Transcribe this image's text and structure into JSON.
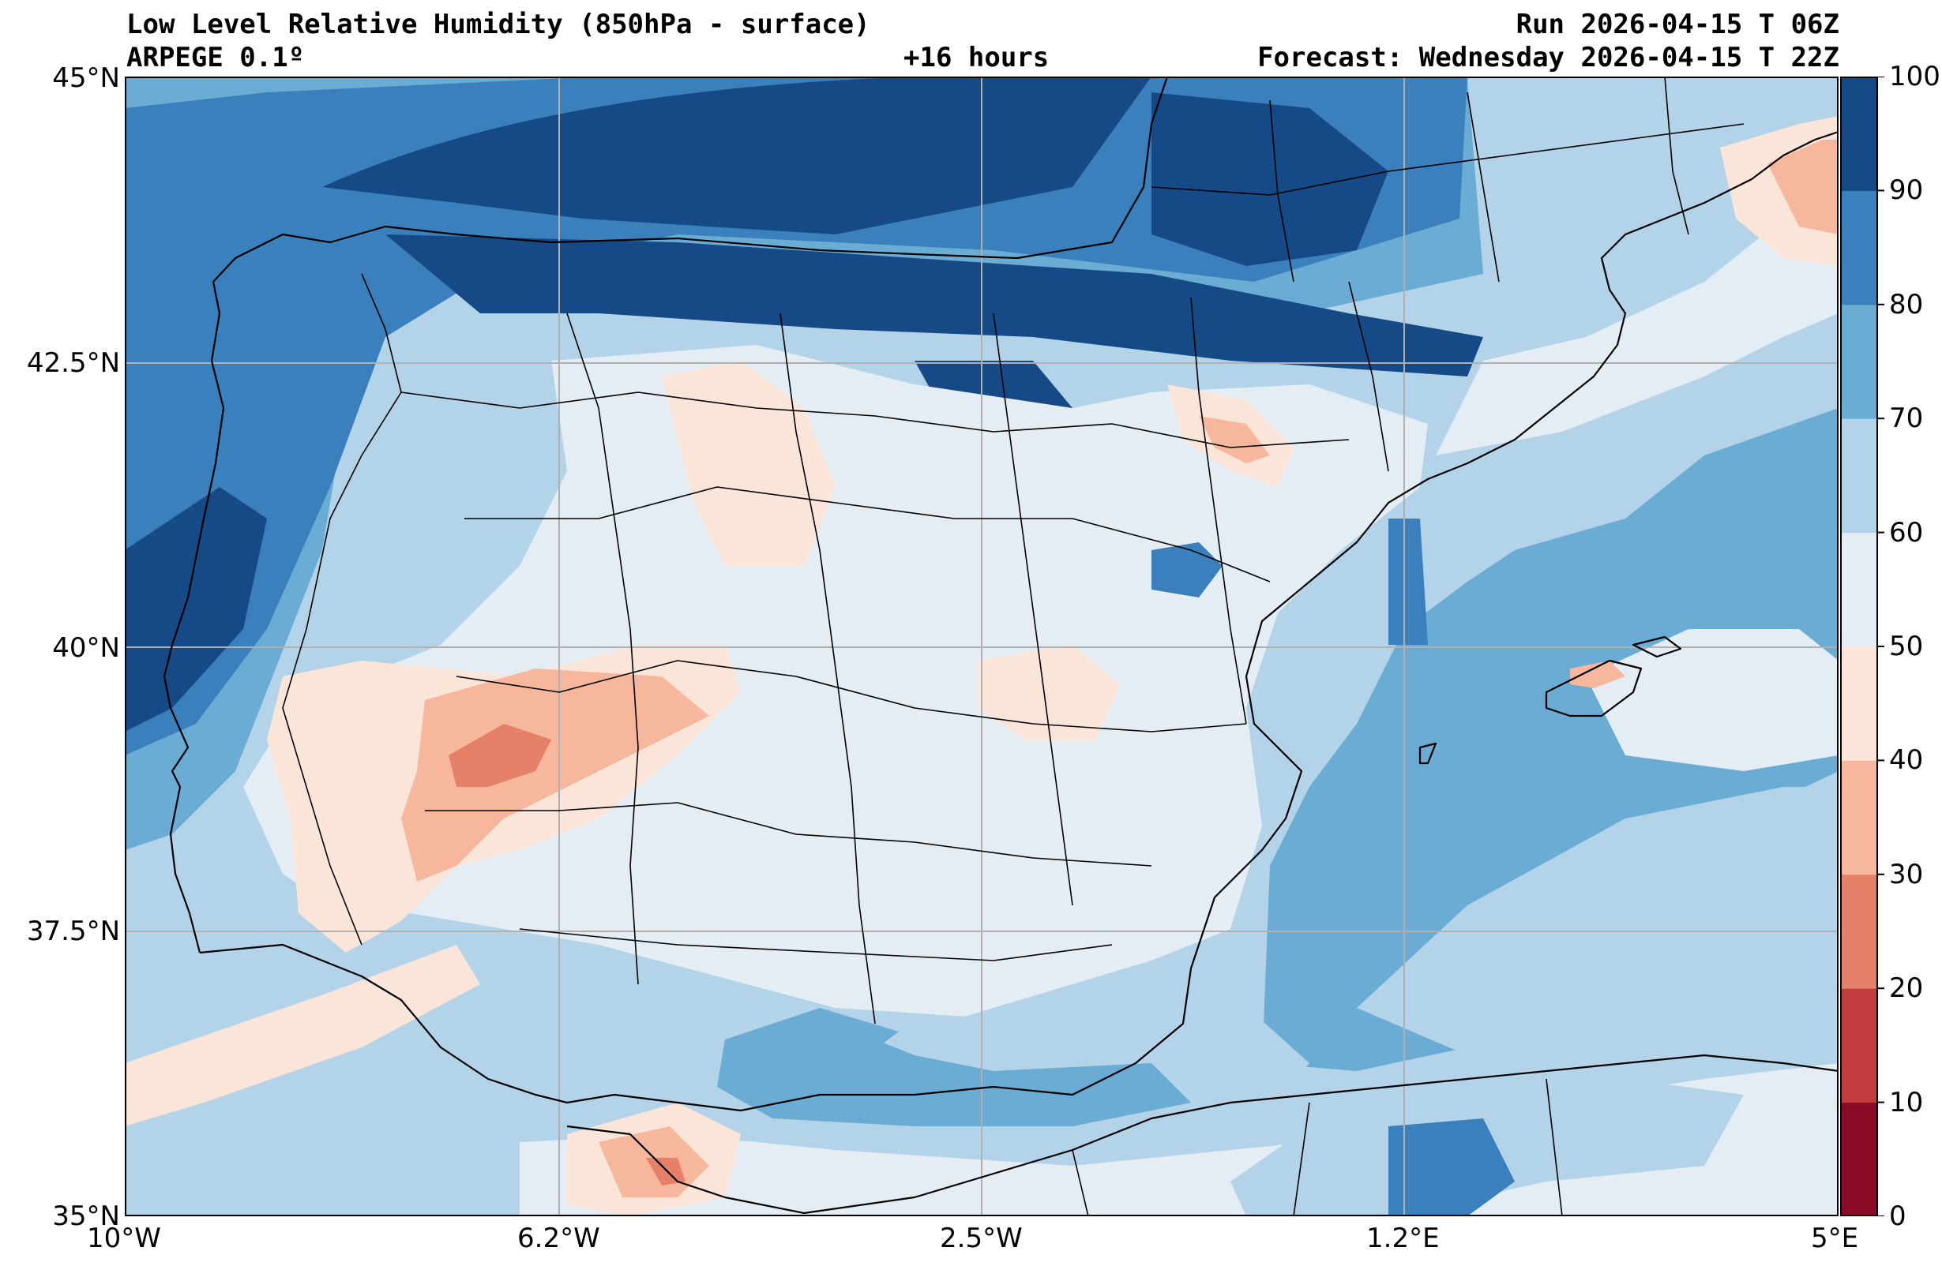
{
  "header": {
    "title": "Low Level Relative Humidity (850hPa - surface)",
    "model": "ARPEGE 0.1º",
    "lead": "+16 hours",
    "run": "Run 2026-04-15 T 06Z",
    "forecast": "Forecast: Wednesday 2026-04-15 T 22Z"
  },
  "map": {
    "lat_ticks": [
      "45°N",
      "42.5°N",
      "40°N",
      "37.5°N",
      "35°N"
    ],
    "lon_ticks": [
      "10°W",
      "6.2°W",
      "2.5°W",
      "1.2°E",
      "5°E"
    ],
    "extent": {
      "lon_min": -10,
      "lon_max": 5,
      "lat_min": 35,
      "lat_max": 45
    },
    "variable": "relative humidity (%)"
  },
  "colorbar": {
    "ticks": [
      "0",
      "10",
      "20",
      "30",
      "40",
      "50",
      "60",
      "70",
      "80",
      "90",
      "100"
    ],
    "colors": [
      "#67001f",
      "#b2182b",
      "#d6604d",
      "#f4a582",
      "#fddbc7",
      "#f7f7f7",
      "#d1e5f0",
      "#92c5de",
      "#4393c3",
      "#2166ac",
      "#053061"
    ]
  },
  "palette": {
    "c0": "#8b0a26",
    "c10": "#c23b3d",
    "c20": "#e58168",
    "c30": "#f6b79c",
    "c40": "#fbe5d9",
    "c50": "#e4edf4",
    "c60": "#b3d3e8",
    "c70": "#6aacd3",
    "c80": "#3a80bc",
    "c90": "#154a86"
  }
}
